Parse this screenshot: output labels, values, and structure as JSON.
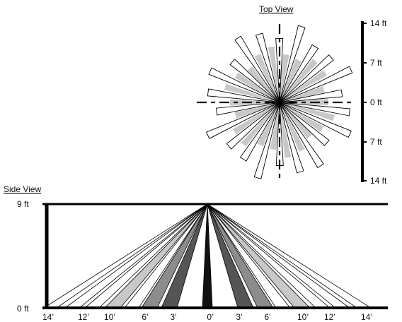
{
  "top_view": {
    "title": "Top View",
    "scale_labels": [
      "14 ft",
      "7 ft",
      "0 ft",
      "7 ft",
      "14 ft"
    ]
  },
  "side_view": {
    "title": "Side View",
    "height_labels": [
      "9 ft",
      "0 ft"
    ],
    "distance_labels": [
      "14’",
      "12’",
      "10’",
      "6’",
      "3’",
      "0’",
      "3’",
      "6’",
      "10’",
      "12’",
      "14’"
    ]
  },
  "colors": {
    "outer_zone": "#ffffff",
    "light_zone": "#c8c8c8",
    "mid_zone": "#8c8c8c",
    "dark_zone": "#555555",
    "center_zone": "#111111",
    "stroke": "#000000"
  }
}
